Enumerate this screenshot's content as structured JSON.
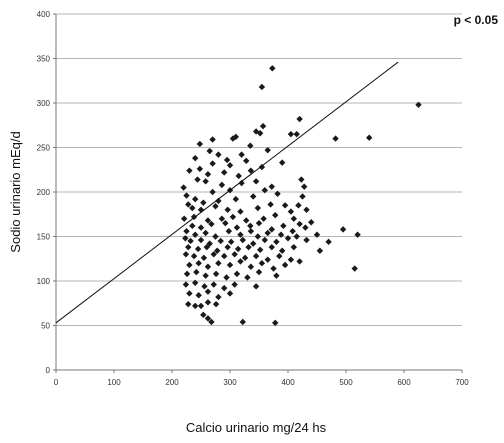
{
  "chart_data": {
    "type": "scatter",
    "title": "",
    "xlabel": "Calcio urinario mg/24 hs",
    "ylabel": "Sodio urinario mEq/d",
    "annotation": "p < 0.05",
    "xlim": [
      0,
      700
    ],
    "ylim": [
      0,
      400
    ],
    "x_ticks": [
      "0",
      "100",
      "200",
      "300",
      "400",
      "500",
      "600",
      "700"
    ],
    "y_ticks": [
      "0",
      "50",
      "100",
      "150",
      "200",
      "250",
      "300",
      "350",
      "400"
    ],
    "grid": "horizontal",
    "marker": "diamond",
    "marker_color": "#1a1a1a",
    "trendline": {
      "x": [
        0,
        590
      ],
      "y": [
        53,
        346
      ]
    },
    "points": [
      [
        373,
        339
      ],
      [
        355,
        318
      ],
      [
        625,
        298
      ],
      [
        420,
        282
      ],
      [
        405,
        265
      ],
      [
        415,
        265
      ],
      [
        540,
        261
      ],
      [
        482,
        260
      ],
      [
        310,
        262
      ],
      [
        305,
        260
      ],
      [
        270,
        259
      ],
      [
        248,
        254
      ],
      [
        345,
        268
      ],
      [
        352,
        266
      ],
      [
        357,
        274
      ],
      [
        335,
        252
      ],
      [
        365,
        247
      ],
      [
        265,
        246
      ],
      [
        280,
        242
      ],
      [
        240,
        238
      ],
      [
        295,
        236
      ],
      [
        320,
        242
      ],
      [
        328,
        235
      ],
      [
        300,
        230
      ],
      [
        270,
        232
      ],
      [
        230,
        224
      ],
      [
        248,
        226
      ],
      [
        262,
        220
      ],
      [
        290,
        222
      ],
      [
        315,
        218
      ],
      [
        336,
        224
      ],
      [
        355,
        228
      ],
      [
        390,
        233
      ],
      [
        244,
        214
      ],
      [
        258,
        212
      ],
      [
        286,
        208
      ],
      [
        320,
        210
      ],
      [
        345,
        212
      ],
      [
        423,
        214
      ],
      [
        428,
        206
      ],
      [
        220,
        205
      ],
      [
        270,
        200
      ],
      [
        300,
        202
      ],
      [
        360,
        202
      ],
      [
        372,
        206
      ],
      [
        382,
        198
      ],
      [
        225,
        196
      ],
      [
        240,
        192
      ],
      [
        254,
        188
      ],
      [
        280,
        190
      ],
      [
        310,
        192
      ],
      [
        340,
        195
      ],
      [
        425,
        195
      ],
      [
        228,
        186
      ],
      [
        235,
        182
      ],
      [
        250,
        180
      ],
      [
        275,
        184
      ],
      [
        296,
        180
      ],
      [
        318,
        178
      ],
      [
        348,
        182
      ],
      [
        370,
        186
      ],
      [
        395,
        185
      ],
      [
        405,
        178
      ],
      [
        418,
        185
      ],
      [
        432,
        180
      ],
      [
        221,
        170
      ],
      [
        238,
        172
      ],
      [
        262,
        168
      ],
      [
        286,
        170
      ],
      [
        305,
        172
      ],
      [
        328,
        168
      ],
      [
        358,
        170
      ],
      [
        378,
        174
      ],
      [
        410,
        170
      ],
      [
        235,
        162
      ],
      [
        250,
        160
      ],
      [
        268,
        164
      ],
      [
        292,
        165
      ],
      [
        312,
        160
      ],
      [
        335,
        162
      ],
      [
        350,
        165
      ],
      [
        372,
        158
      ],
      [
        392,
        162
      ],
      [
        420,
        164
      ],
      [
        440,
        166
      ],
      [
        225,
        156
      ],
      [
        240,
        152
      ],
      [
        258,
        154
      ],
      [
        275,
        150
      ],
      [
        298,
        156
      ],
      [
        318,
        152
      ],
      [
        336,
        156
      ],
      [
        348,
        150
      ],
      [
        365,
        154
      ],
      [
        388,
        152
      ],
      [
        408,
        156
      ],
      [
        430,
        160
      ],
      [
        223,
        148
      ],
      [
        232,
        145
      ],
      [
        250,
        146
      ],
      [
        265,
        142
      ],
      [
        284,
        145
      ],
      [
        302,
        144
      ],
      [
        322,
        146
      ],
      [
        340,
        142
      ],
      [
        360,
        146
      ],
      [
        380,
        144
      ],
      [
        400,
        148
      ],
      [
        415,
        150
      ],
      [
        432,
        146
      ],
      [
        450,
        152
      ],
      [
        520,
        152
      ],
      [
        495,
        158
      ],
      [
        228,
        138
      ],
      [
        245,
        136
      ],
      [
        260,
        138
      ],
      [
        278,
        134
      ],
      [
        296,
        138
      ],
      [
        314,
        136
      ],
      [
        332,
        138
      ],
      [
        352,
        135
      ],
      [
        372,
        138
      ],
      [
        390,
        134
      ],
      [
        410,
        138
      ],
      [
        470,
        144
      ],
      [
        224,
        130
      ],
      [
        238,
        128
      ],
      [
        255,
        126
      ],
      [
        272,
        130
      ],
      [
        290,
        128
      ],
      [
        308,
        130
      ],
      [
        326,
        126
      ],
      [
        345,
        128
      ],
      [
        365,
        124
      ],
      [
        385,
        128
      ],
      [
        405,
        124
      ],
      [
        420,
        122
      ],
      [
        455,
        134
      ],
      [
        230,
        118
      ],
      [
        246,
        120
      ],
      [
        262,
        116
      ],
      [
        280,
        120
      ],
      [
        300,
        118
      ],
      [
        318,
        122
      ],
      [
        336,
        116
      ],
      [
        355,
        120
      ],
      [
        375,
        114
      ],
      [
        395,
        118
      ],
      [
        226,
        108
      ],
      [
        242,
        110
      ],
      [
        258,
        106
      ],
      [
        276,
        108
      ],
      [
        294,
        104
      ],
      [
        312,
        108
      ],
      [
        330,
        104
      ],
      [
        350,
        110
      ],
      [
        380,
        106
      ],
      [
        515,
        114
      ],
      [
        224,
        96
      ],
      [
        240,
        98
      ],
      [
        256,
        94
      ],
      [
        272,
        96
      ],
      [
        290,
        92
      ],
      [
        308,
        96
      ],
      [
        345,
        94
      ],
      [
        230,
        86
      ],
      [
        246,
        84
      ],
      [
        262,
        88
      ],
      [
        280,
        82
      ],
      [
        300,
        86
      ],
      [
        228,
        74
      ],
      [
        240,
        72
      ],
      [
        250,
        72
      ],
      [
        262,
        76
      ],
      [
        276,
        74
      ],
      [
        254,
        62
      ],
      [
        262,
        58
      ],
      [
        268,
        54
      ],
      [
        322,
        54
      ],
      [
        378,
        53
      ]
    ]
  }
}
